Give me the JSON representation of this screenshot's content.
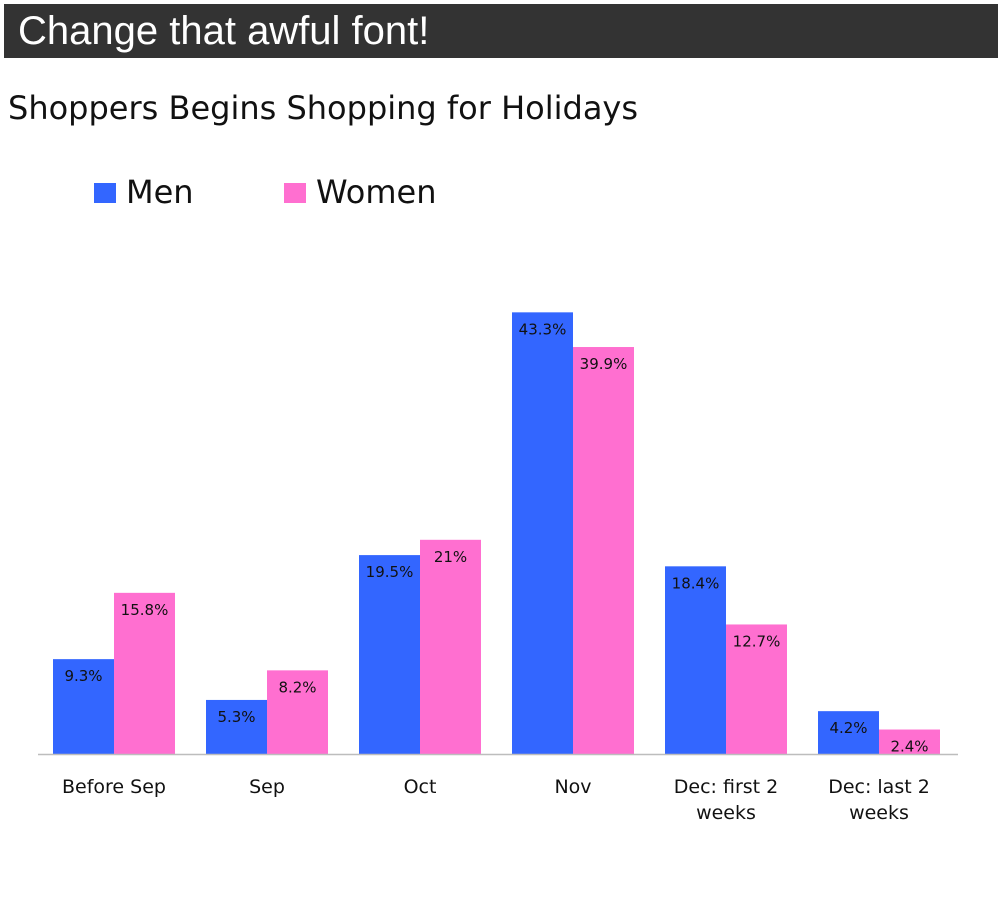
{
  "header": {
    "text": "Change that awful font!"
  },
  "chart_data": {
    "type": "bar",
    "title": "Shoppers Begins Shopping for Holidays",
    "categories": [
      "Before Sep",
      "Sep",
      "Oct",
      "Nov",
      "Dec: first 2 weeks",
      "Dec: last 2 weeks"
    ],
    "category_lines": [
      [
        "Before Sep"
      ],
      [
        "Sep"
      ],
      [
        "Oct"
      ],
      [
        "Nov"
      ],
      [
        "Dec: first 2",
        "weeks"
      ],
      [
        "Dec: last 2",
        "weeks"
      ]
    ],
    "series": [
      {
        "name": "Men",
        "color": "#3366ff",
        "values": [
          9.3,
          5.3,
          19.5,
          43.3,
          18.4,
          4.2
        ],
        "labels": [
          "9.3%",
          "5.3%",
          "19.5%",
          "43.3%",
          "18.4%",
          "4.2%"
        ]
      },
      {
        "name": "Women",
        "color": "#ff6fd0",
        "values": [
          15.8,
          8.2,
          21,
          39.9,
          12.7,
          2.4
        ],
        "labels": [
          "15.8%",
          "8.2%",
          "21%",
          "39.9%",
          "12.7%",
          "2.4%"
        ]
      }
    ],
    "legend_position": "top-left",
    "ylim": [
      0,
      45
    ],
    "grid": false,
    "xlabel": "",
    "ylabel": ""
  }
}
